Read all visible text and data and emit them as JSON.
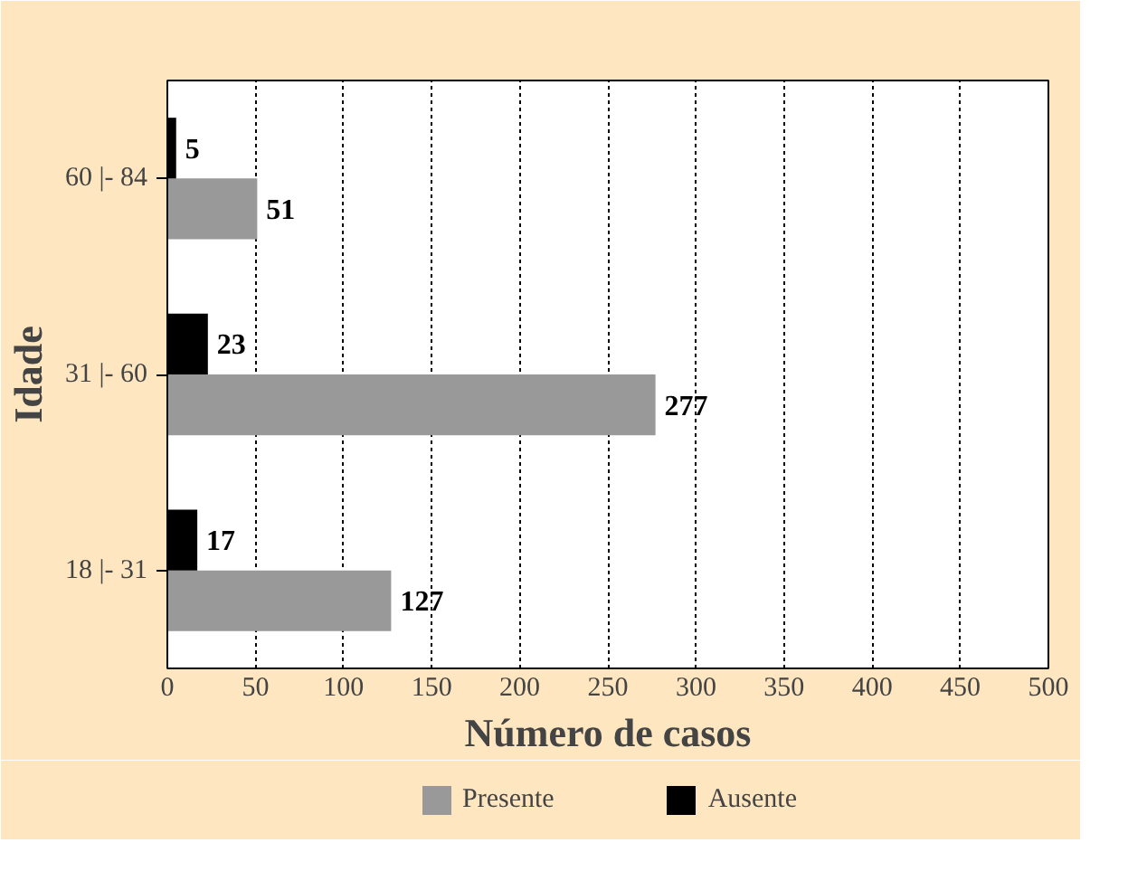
{
  "chart_data": {
    "type": "bar",
    "orientation": "horizontal",
    "xlabel": "Número de casos",
    "ylabel": "Idade",
    "categories": [
      "60 |- 84",
      "31 |- 60",
      "18 |- 31"
    ],
    "series": [
      {
        "name": "Presente",
        "color": "#999999",
        "values": [
          51,
          277,
          127
        ]
      },
      {
        "name": "Ausente",
        "color": "#000000",
        "values": [
          5,
          23,
          17
        ]
      }
    ],
    "xlim": [
      0,
      500
    ],
    "xticks": [
      0,
      50,
      100,
      150,
      200,
      250,
      300,
      350,
      400,
      450,
      500
    ],
    "grid": "x",
    "legend": "bottom",
    "data_labels": true
  }
}
